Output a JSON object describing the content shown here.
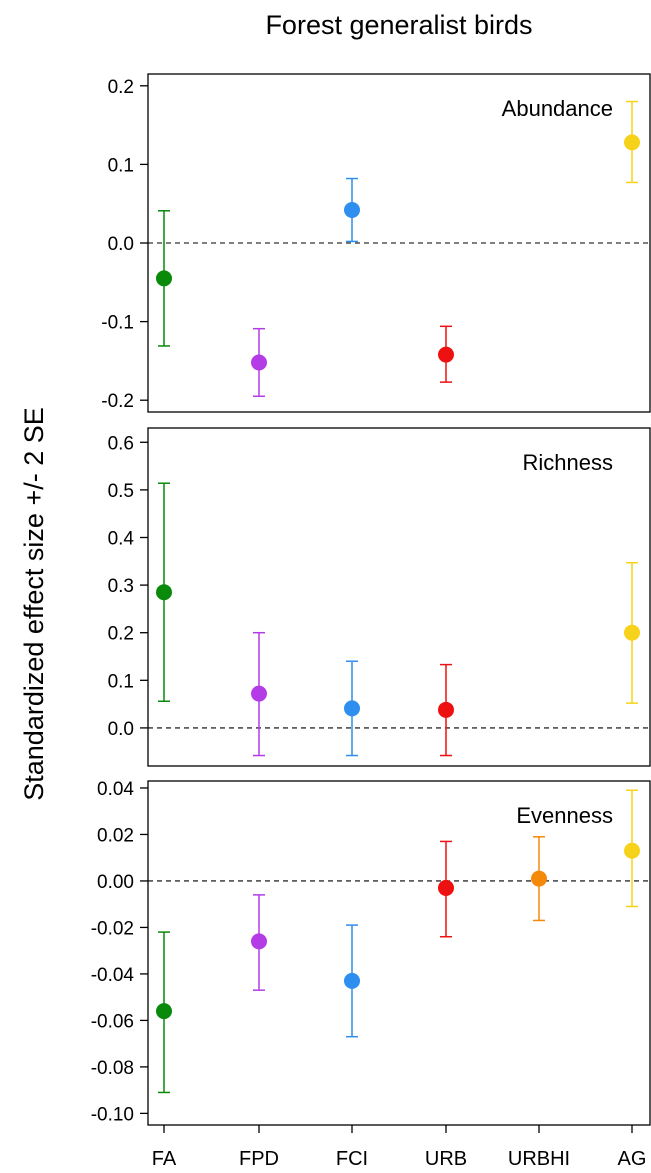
{
  "title": "Forest generalist birds",
  "ylabel": "Standardized effect size +/- 2 SE",
  "categories": [
    "FA",
    "FPD",
    "FCI",
    "URB",
    "URBHI",
    "AG"
  ],
  "colors": {
    "FA": "#0a8a0a",
    "FPD": "#b43ce6",
    "FCI": "#2e8fee",
    "URB": "#ee1111",
    "URBHI": "#f5890a",
    "AG": "#f7d21a"
  },
  "chart_data": [
    {
      "type": "scatter",
      "title": "Abundance",
      "ylim": [
        -0.215,
        0.215
      ],
      "yticks": [
        0.2,
        0.1,
        0.0,
        -0.1,
        -0.2
      ],
      "ytick_labels": [
        "0.2",
        "0.1",
        "0.0",
        "-0.1",
        "-0.2"
      ],
      "reference_line": 0,
      "points": [
        {
          "category": "FA",
          "value": -0.045,
          "lower": -0.131,
          "upper": 0.041
        },
        {
          "category": "FPD",
          "value": -0.152,
          "lower": -0.195,
          "upper": -0.109
        },
        {
          "category": "FCI",
          "value": 0.042,
          "lower": 0.002,
          "upper": 0.082
        },
        {
          "category": "URB",
          "value": -0.142,
          "lower": -0.177,
          "upper": -0.106
        },
        {
          "category": "AG",
          "value": 0.128,
          "lower": 0.077,
          "upper": 0.18
        }
      ]
    },
    {
      "type": "scatter",
      "title": "Richness",
      "ylim": [
        -0.08,
        0.63
      ],
      "yticks": [
        0.6,
        0.5,
        0.4,
        0.3,
        0.2,
        0.1,
        0.0
      ],
      "ytick_labels": [
        "0.6",
        "0.5",
        "0.4",
        "0.3",
        "0.2",
        "0.1",
        "0.0"
      ],
      "reference_line": 0,
      "points": [
        {
          "category": "FA",
          "value": 0.285,
          "lower": 0.056,
          "upper": 0.514
        },
        {
          "category": "FPD",
          "value": 0.072,
          "lower": -0.058,
          "upper": 0.2
        },
        {
          "category": "FCI",
          "value": 0.041,
          "lower": -0.058,
          "upper": 0.14
        },
        {
          "category": "URB",
          "value": 0.038,
          "lower": -0.058,
          "upper": 0.133
        },
        {
          "category": "AG",
          "value": 0.2,
          "lower": 0.052,
          "upper": 0.347
        }
      ]
    },
    {
      "type": "scatter",
      "title": "Evenness",
      "ylim": [
        -0.105,
        0.043
      ],
      "yticks": [
        0.04,
        0.02,
        0.0,
        -0.02,
        -0.04,
        -0.06,
        -0.08,
        -0.1
      ],
      "ytick_labels": [
        "0.04",
        "0.02",
        "0.00",
        "-0.02",
        "-0.04",
        "-0.06",
        "-0.08",
        "-0.10"
      ],
      "reference_line": 0,
      "points": [
        {
          "category": "FA",
          "value": -0.056,
          "lower": -0.091,
          "upper": -0.022
        },
        {
          "category": "FPD",
          "value": -0.026,
          "lower": -0.047,
          "upper": -0.006
        },
        {
          "category": "FCI",
          "value": -0.043,
          "lower": -0.067,
          "upper": -0.019
        },
        {
          "category": "URB",
          "value": -0.003,
          "lower": -0.024,
          "upper": 0.017
        },
        {
          "category": "URBHI",
          "value": 0.001,
          "lower": -0.017,
          "upper": 0.019
        },
        {
          "category": "AG",
          "value": 0.013,
          "lower": -0.011,
          "upper": 0.039
        }
      ]
    }
  ]
}
